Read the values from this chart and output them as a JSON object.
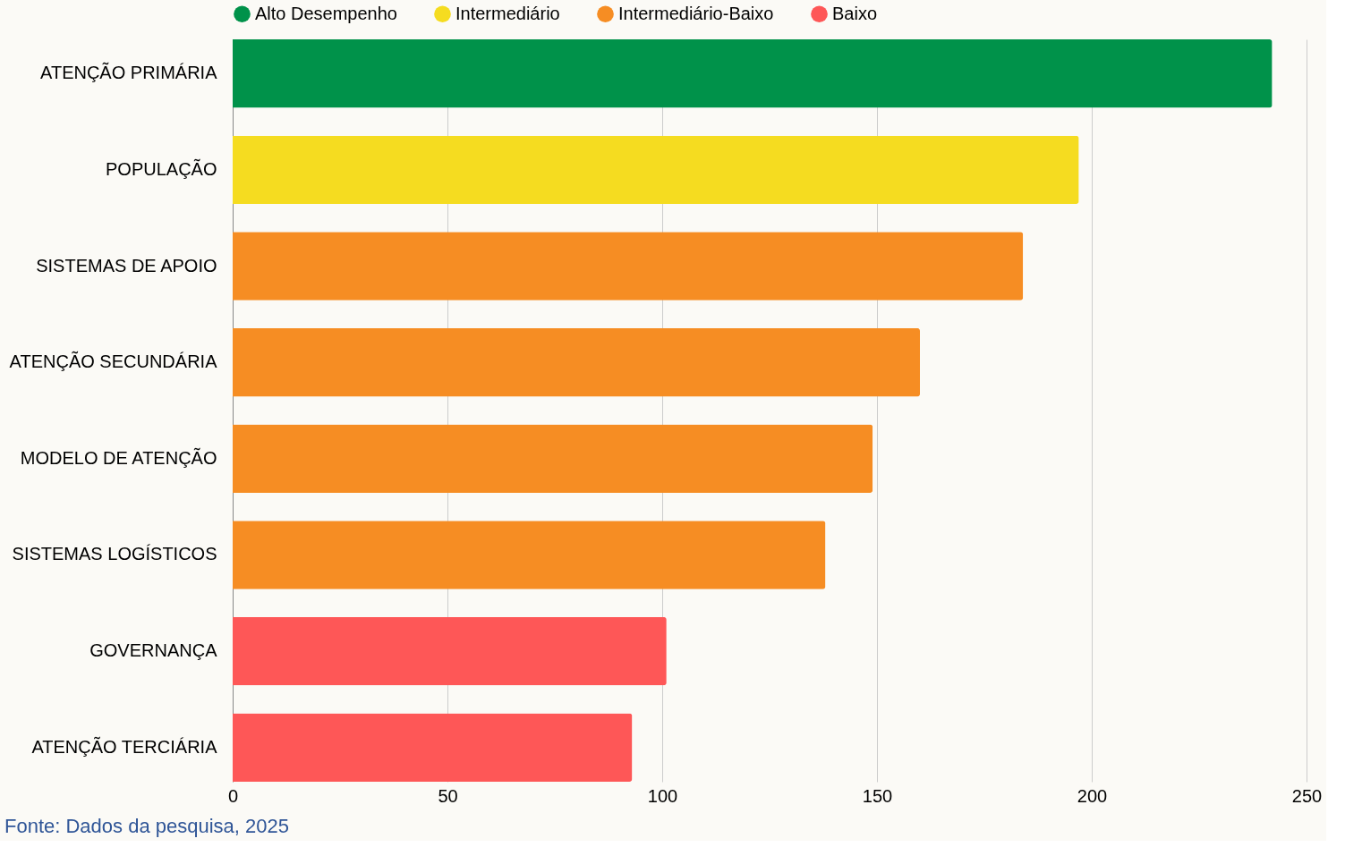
{
  "chart_data": {
    "type": "bar",
    "orientation": "horizontal",
    "categories": [
      "ATENÇÃO PRIMÁRIA",
      "POPULAÇÃO",
      "SISTEMAS DE APOIO",
      "ATENÇÃO SECUNDÁRIA",
      "MODELO DE ATENÇÃO",
      "SISTEMAS LOGÍSTICOS",
      "GOVERNANÇA",
      "ATENÇÃO TERCIÁRIA"
    ],
    "series": [
      {
        "name": "Alto Desempenho",
        "color": "#00924a",
        "values": [
          242,
          null,
          null,
          null,
          null,
          null,
          null,
          null
        ]
      },
      {
        "name": "Intermediário",
        "color": "#f5dc20",
        "values": [
          null,
          197,
          null,
          null,
          null,
          null,
          null,
          null
        ]
      },
      {
        "name": "Intermediário-Baixo",
        "color": "#f68d23",
        "values": [
          null,
          null,
          184,
          160,
          149,
          138,
          null,
          null
        ]
      },
      {
        "name": "Baixo",
        "color": "#fe5757",
        "values": [
          null,
          null,
          null,
          null,
          null,
          null,
          101,
          93
        ]
      }
    ],
    "xlim": [
      0,
      250
    ],
    "xticks": [
      0,
      50,
      100,
      150,
      200,
      250
    ],
    "grid": "x",
    "legend": "top",
    "annotations": [
      "Fonte: Dados da pesquisa, 2025"
    ]
  }
}
